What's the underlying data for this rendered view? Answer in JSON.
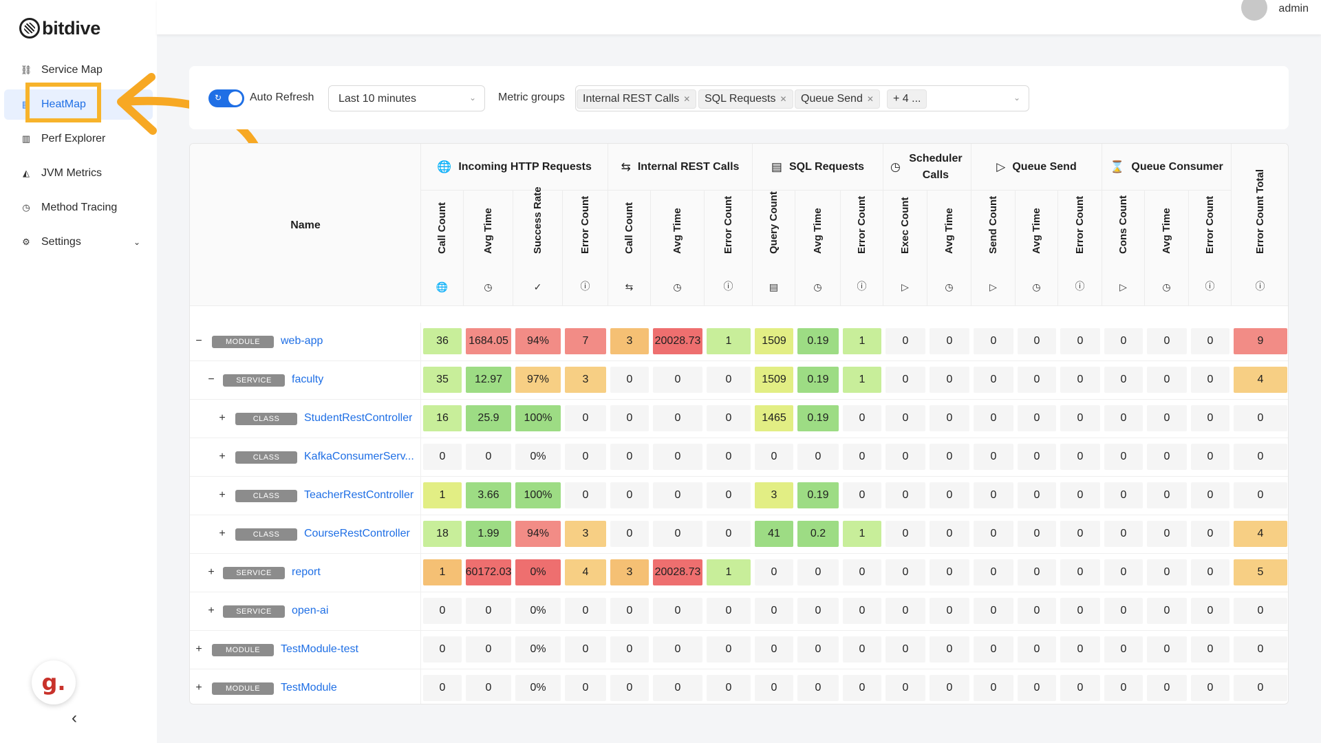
{
  "app": {
    "name": "bitdive"
  },
  "sidebar": {
    "items": [
      {
        "label": "Service Map",
        "icon": "service-map-icon",
        "glyph": "⛓"
      },
      {
        "label": "HeatMap",
        "icon": "heatmap-icon",
        "glyph": "▤",
        "active": true
      },
      {
        "label": "Perf Explorer",
        "icon": "bar-chart-icon",
        "glyph": "▥"
      },
      {
        "label": "JVM Metrics",
        "icon": "area-chart-icon",
        "glyph": "◭"
      },
      {
        "label": "Method Tracing",
        "icon": "clock-icon",
        "glyph": "◷"
      },
      {
        "label": "Settings",
        "icon": "gear-icon",
        "glyph": "⚙",
        "has_submenu": true
      }
    ],
    "badge_letter": "g.",
    "collapse_glyph": "‹"
  },
  "header": {
    "user": "admin"
  },
  "filters": {
    "auto_refresh_label": "Auto Refresh",
    "auto_refresh_on": true,
    "time_range": "Last 10 minutes",
    "metric_groups_label": "Metric groups",
    "metric_group_tags": [
      "Internal REST Calls",
      "SQL Requests",
      "Queue Send"
    ],
    "more_tag": "+ 4 ..."
  },
  "table": {
    "name_header": "Name",
    "groups": [
      {
        "label": "Incoming HTTP Requests",
        "icon": "globe-icon",
        "glyph": "🌐"
      },
      {
        "label": "Internal REST Calls",
        "icon": "transfer-icon",
        "glyph": "⇆"
      },
      {
        "label": "SQL Requests",
        "icon": "database-icon",
        "glyph": "▤"
      },
      {
        "label": "Scheduler Calls",
        "icon": "clock-icon",
        "glyph": "◷"
      },
      {
        "label": "Queue Send",
        "icon": "play-circle-icon",
        "glyph": "▷"
      },
      {
        "label": "Queue Consumer",
        "icon": "hourglass-icon",
        "glyph": "⌛"
      },
      {
        "label": "",
        "icon": "",
        "glyph": ""
      }
    ],
    "columns": [
      {
        "label": "Call Count",
        "glyph": "🌐"
      },
      {
        "label": "Avg Time",
        "glyph": "◷"
      },
      {
        "label": "Success Rate",
        "glyph": "✓"
      },
      {
        "label": "Error Count",
        "glyph": "ⓘ"
      },
      {
        "label": "Call Count",
        "glyph": "⇆"
      },
      {
        "label": "Avg Time",
        "glyph": "◷"
      },
      {
        "label": "Error Count",
        "glyph": "ⓘ"
      },
      {
        "label": "Query Count",
        "glyph": "▤"
      },
      {
        "label": "Avg Time",
        "glyph": "◷"
      },
      {
        "label": "Error Count",
        "glyph": "ⓘ"
      },
      {
        "label": "Exec Count",
        "glyph": "▷"
      },
      {
        "label": "Avg Time",
        "glyph": "◷"
      },
      {
        "label": "Send Count",
        "glyph": "▷"
      },
      {
        "label": "Avg Time",
        "glyph": "◷"
      },
      {
        "label": "Error Count",
        "glyph": "ⓘ"
      },
      {
        "label": "Cons Count",
        "glyph": "▷"
      },
      {
        "label": "Avg Time",
        "glyph": "◷"
      },
      {
        "label": "Error Count",
        "glyph": "ⓘ"
      },
      {
        "label": "Error Count Total",
        "glyph": "ⓘ"
      }
    ],
    "colors": {
      "zero": "#f5f5f5",
      "green": "#9ddc84",
      "light_green": "#c8ee9a",
      "yellow_green": "#e2ee84",
      "orange": "#f5c074",
      "light_orange": "#f7cf84",
      "red": "#ee6f6f",
      "salmon": "#f28c86"
    },
    "rows": [
      {
        "expander": "−",
        "level": 0,
        "type": "MODULE",
        "name": "web-app",
        "values": [
          "36",
          "1684.05",
          "94%",
          "7",
          "3",
          "20028.73",
          "1",
          "1509",
          "0.19",
          "1",
          "0",
          "0",
          "0",
          "0",
          "0",
          "0",
          "0",
          "0",
          "9"
        ],
        "colors": [
          "light_green",
          "salmon",
          "salmon",
          "salmon",
          "orange",
          "red",
          "light_green",
          "yellow_green",
          "green",
          "light_green",
          "zero",
          "zero",
          "zero",
          "zero",
          "zero",
          "zero",
          "zero",
          "zero",
          "salmon"
        ]
      },
      {
        "expander": "−",
        "level": 1,
        "type": "SERVICE",
        "name": "faculty",
        "values": [
          "35",
          "12.97",
          "97%",
          "3",
          "0",
          "0",
          "0",
          "1509",
          "0.19",
          "1",
          "0",
          "0",
          "0",
          "0",
          "0",
          "0",
          "0",
          "0",
          "4"
        ],
        "colors": [
          "light_green",
          "green",
          "light_orange",
          "light_orange",
          "zero",
          "zero",
          "zero",
          "yellow_green",
          "green",
          "light_green",
          "zero",
          "zero",
          "zero",
          "zero",
          "zero",
          "zero",
          "zero",
          "zero",
          "light_orange"
        ]
      },
      {
        "expander": "+",
        "level": 2,
        "type": "CLASS",
        "name": "StudentRestController",
        "values": [
          "16",
          "25.9",
          "100%",
          "0",
          "0",
          "0",
          "0",
          "1465",
          "0.19",
          "0",
          "0",
          "0",
          "0",
          "0",
          "0",
          "0",
          "0",
          "0",
          "0"
        ],
        "colors": [
          "light_green",
          "green",
          "green",
          "zero",
          "zero",
          "zero",
          "zero",
          "yellow_green",
          "green",
          "zero",
          "zero",
          "zero",
          "zero",
          "zero",
          "zero",
          "zero",
          "zero",
          "zero",
          "zero"
        ]
      },
      {
        "expander": "+",
        "level": 2,
        "type": "CLASS",
        "name": "KafkaConsumerServ...",
        "values": [
          "0",
          "0",
          "0%",
          "0",
          "0",
          "0",
          "0",
          "0",
          "0",
          "0",
          "0",
          "0",
          "0",
          "0",
          "0",
          "0",
          "0",
          "0",
          "0"
        ],
        "colors": [
          "zero",
          "zero",
          "zero",
          "zero",
          "zero",
          "zero",
          "zero",
          "zero",
          "zero",
          "zero",
          "zero",
          "zero",
          "zero",
          "zero",
          "zero",
          "zero",
          "zero",
          "zero",
          "zero"
        ]
      },
      {
        "expander": "+",
        "level": 2,
        "type": "CLASS",
        "name": "TeacherRestController",
        "values": [
          "1",
          "3.66",
          "100%",
          "0",
          "0",
          "0",
          "0",
          "3",
          "0.19",
          "0",
          "0",
          "0",
          "0",
          "0",
          "0",
          "0",
          "0",
          "0",
          "0"
        ],
        "colors": [
          "yellow_green",
          "green",
          "green",
          "zero",
          "zero",
          "zero",
          "zero",
          "yellow_green",
          "green",
          "zero",
          "zero",
          "zero",
          "zero",
          "zero",
          "zero",
          "zero",
          "zero",
          "zero",
          "zero"
        ]
      },
      {
        "expander": "+",
        "level": 2,
        "type": "CLASS",
        "name": "CourseRestController",
        "values": [
          "18",
          "1.99",
          "94%",
          "3",
          "0",
          "0",
          "0",
          "41",
          "0.2",
          "1",
          "0",
          "0",
          "0",
          "0",
          "0",
          "0",
          "0",
          "0",
          "4"
        ],
        "colors": [
          "light_green",
          "green",
          "salmon",
          "light_orange",
          "zero",
          "zero",
          "zero",
          "green",
          "green",
          "light_green",
          "zero",
          "zero",
          "zero",
          "zero",
          "zero",
          "zero",
          "zero",
          "zero",
          "light_orange"
        ]
      },
      {
        "expander": "+",
        "level": 1,
        "type": "SERVICE",
        "name": "report",
        "values": [
          "1",
          "60172.03",
          "0%",
          "4",
          "3",
          "20028.73",
          "1",
          "0",
          "0",
          "0",
          "0",
          "0",
          "0",
          "0",
          "0",
          "0",
          "0",
          "0",
          "5"
        ],
        "colors": [
          "orange",
          "red",
          "red",
          "light_orange",
          "orange",
          "red",
          "light_green",
          "zero",
          "zero",
          "zero",
          "zero",
          "zero",
          "zero",
          "zero",
          "zero",
          "zero",
          "zero",
          "zero",
          "light_orange"
        ]
      },
      {
        "expander": "+",
        "level": 1,
        "type": "SERVICE",
        "name": "open-ai",
        "values": [
          "0",
          "0",
          "0%",
          "0",
          "0",
          "0",
          "0",
          "0",
          "0",
          "0",
          "0",
          "0",
          "0",
          "0",
          "0",
          "0",
          "0",
          "0",
          "0"
        ],
        "colors": [
          "zero",
          "zero",
          "zero",
          "zero",
          "zero",
          "zero",
          "zero",
          "zero",
          "zero",
          "zero",
          "zero",
          "zero",
          "zero",
          "zero",
          "zero",
          "zero",
          "zero",
          "zero",
          "zero"
        ]
      },
      {
        "expander": "+",
        "level": 0,
        "type": "MODULE",
        "name": "TestModule-test",
        "values": [
          "0",
          "0",
          "0%",
          "0",
          "0",
          "0",
          "0",
          "0",
          "0",
          "0",
          "0",
          "0",
          "0",
          "0",
          "0",
          "0",
          "0",
          "0",
          "0"
        ],
        "colors": [
          "zero",
          "zero",
          "zero",
          "zero",
          "zero",
          "zero",
          "zero",
          "zero",
          "zero",
          "zero",
          "zero",
          "zero",
          "zero",
          "zero",
          "zero",
          "zero",
          "zero",
          "zero",
          "zero"
        ]
      },
      {
        "expander": "+",
        "level": 0,
        "type": "MODULE",
        "name": "TestModule",
        "values": [
          "0",
          "0",
          "0%",
          "0",
          "0",
          "0",
          "0",
          "0",
          "0",
          "0",
          "0",
          "0",
          "0",
          "0",
          "0",
          "0",
          "0",
          "0",
          "0"
        ],
        "colors": [
          "zero",
          "zero",
          "zero",
          "zero",
          "zero",
          "zero",
          "zero",
          "zero",
          "zero",
          "zero",
          "zero",
          "zero",
          "zero",
          "zero",
          "zero",
          "zero",
          "zero",
          "zero",
          "zero"
        ]
      }
    ]
  }
}
